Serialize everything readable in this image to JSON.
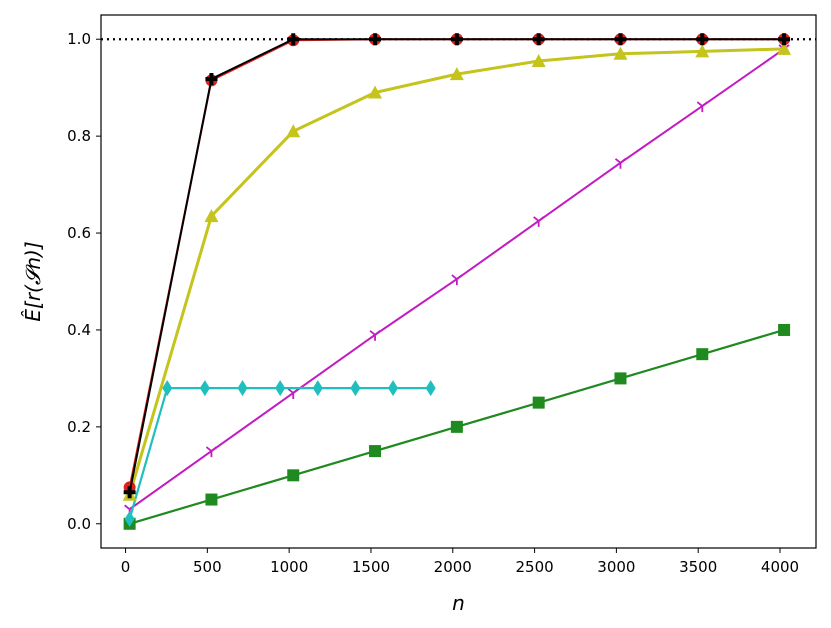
{
  "chart_data": {
    "type": "line",
    "title": "",
    "xlabel": "n",
    "ylabel": "Ê[r(𝓢n)]",
    "xlim": [
      -150,
      4220
    ],
    "ylim": [
      -0.05,
      1.05
    ],
    "xticks": [
      0,
      500,
      1000,
      1500,
      2000,
      2500,
      3000,
      3500,
      4000
    ],
    "xtick_labels": [
      "0",
      "500",
      "1000",
      "1500",
      "2000",
      "2500",
      "3000",
      "3500",
      "4000"
    ],
    "yticks": [
      0.0,
      0.2,
      0.4,
      0.6,
      0.8,
      1.0
    ],
    "ytick_labels": [
      "0.0",
      "0.2",
      "0.4",
      "0.6",
      "0.8",
      "1.0"
    ],
    "reference_line": {
      "y": 1.0,
      "style": "dotted",
      "color": "#000000"
    },
    "grid": false,
    "legend": "none",
    "series": [
      {
        "color": "#1f8a1f",
        "marker": "square",
        "line_width": 2.2,
        "x": [
          25,
          525,
          1025,
          1525,
          2025,
          2525,
          3025,
          3525,
          4025
        ],
        "y": [
          0.0,
          0.05,
          0.1,
          0.15,
          0.2,
          0.25,
          0.3,
          0.35,
          0.4
        ]
      },
      {
        "color": "#c21bc2",
        "marker": "tri_down",
        "line_width": 2.0,
        "x": [
          25,
          525,
          1025,
          1525,
          2025,
          2525,
          3025,
          3525,
          4025
        ],
        "y": [
          0.03,
          0.15,
          0.27,
          0.39,
          0.505,
          0.625,
          0.745,
          0.862,
          0.98
        ]
      },
      {
        "color": "#1fbfbf",
        "marker": "thin_diamond",
        "line_width": 2.2,
        "x": [
          25,
          255,
          485,
          715,
          945,
          1175,
          1405,
          1635,
          1865
        ],
        "y": [
          0.01,
          0.28,
          0.28,
          0.28,
          0.28,
          0.28,
          0.28,
          0.28,
          0.28
        ]
      },
      {
        "color": "#c4c41c",
        "marker": "triangle_up",
        "line_width": 3.0,
        "x": [
          25,
          525,
          1025,
          1525,
          2025,
          2525,
          3025,
          3525,
          4025
        ],
        "y": [
          0.06,
          0.635,
          0.81,
          0.89,
          0.928,
          0.955,
          0.97,
          0.975,
          0.98
        ]
      },
      {
        "color": "#e01f1f",
        "marker": "circle",
        "line_width": 2.0,
        "x": [
          25,
          525,
          1025,
          1525,
          2025,
          2525,
          3025,
          3525,
          4025
        ],
        "y": [
          0.075,
          0.915,
          0.998,
          1.0,
          1.0,
          1.0,
          1.0,
          1.0,
          1.0
        ]
      },
      {
        "color": "#000000",
        "marker": "plus",
        "line_width": 2.0,
        "x": [
          25,
          525,
          1025,
          1525,
          2025,
          2525,
          3025,
          3525,
          4025
        ],
        "y": [
          0.065,
          0.918,
          1.0,
          1.0,
          1.0,
          1.0,
          1.0,
          1.0,
          1.0
        ]
      }
    ]
  }
}
